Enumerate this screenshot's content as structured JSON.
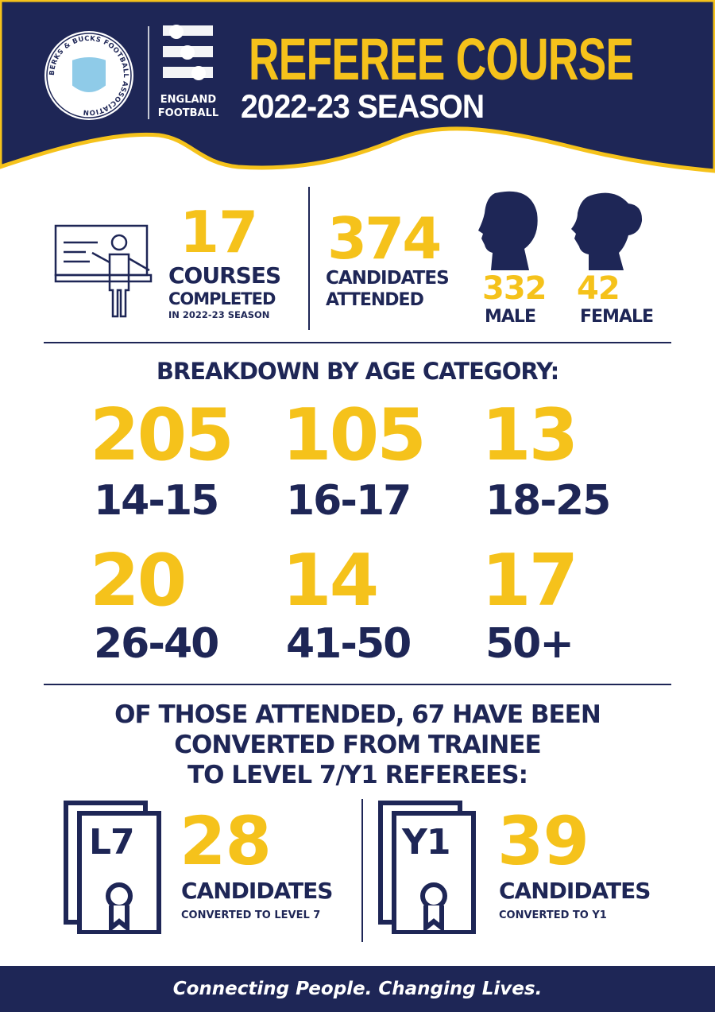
{
  "header": {
    "title": "REFEREE COURSE",
    "subtitle": "2022-23 SEASON",
    "logo1_text": "BERKS & BUCKS FOOTBALL ASSOCIATION",
    "logo2_text_1": "ENGLAND",
    "logo2_text_2": "FOOTBALL"
  },
  "colors": {
    "navy": "#1e2656",
    "yellow": "#f5c21b",
    "logo_blue": "#8fcbe8"
  },
  "courses": {
    "value": "17",
    "label1": "COURSES",
    "label2": "COMPLETED",
    "label3": "IN 2022-23 SEASON",
    "icon": "teacher-whiteboard-icon"
  },
  "candidates": {
    "value": "374",
    "label1": "CANDIDATES",
    "label2": "ATTENDED",
    "male_value": "332",
    "male_label": "MALE",
    "female_value": "42",
    "female_label": "FEMALE"
  },
  "age": {
    "heading": "BREAKDOWN BY AGE CATEGORY:",
    "items": [
      {
        "value": "205",
        "label": "14-15"
      },
      {
        "value": "105",
        "label": "16-17"
      },
      {
        "value": "13",
        "label": "18-25"
      },
      {
        "value": "20",
        "label": "26-40"
      },
      {
        "value": "14",
        "label": "41-50"
      },
      {
        "value": "17",
        "label": "50+"
      }
    ]
  },
  "conversion": {
    "line1": "OF THOSE ATTENDED, 67 HAVE BEEN",
    "line2": "CONVERTED FROM TRAINEE",
    "line3": "TO LEVEL 7/Y1 REFEREES:",
    "items": [
      {
        "badge": "L7",
        "value": "28",
        "label1": "CANDIDATES",
        "label2": "CONVERTED TO LEVEL 7"
      },
      {
        "badge": "Y1",
        "value": "39",
        "label1": "CANDIDATES",
        "label2": "CONVERTED TO Y1"
      }
    ]
  },
  "footer": {
    "tagline": "Connecting People. Changing Lives."
  }
}
